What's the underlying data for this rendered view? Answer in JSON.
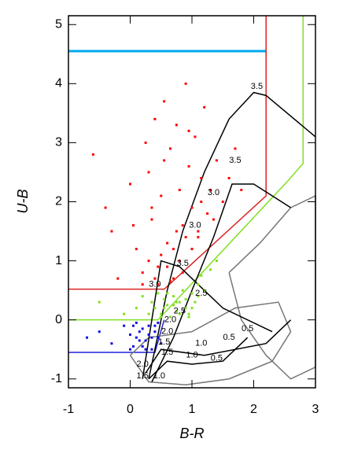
{
  "chart_data": {
    "type": "scatter",
    "xlabel": "B-R",
    "ylabel": "U-B",
    "xlim": [
      -1,
      3
    ],
    "ylim": [
      -1.15,
      5.15
    ],
    "xticks": [
      -1,
      0,
      1,
      2,
      3
    ],
    "yticks": [
      -1,
      0,
      1,
      2,
      3,
      4,
      5
    ],
    "series": [
      {
        "color": "#ff0000",
        "x": [
          -0.6,
          -0.4,
          -0.3,
          0.0,
          0.1,
          0.2,
          0.25,
          0.3,
          0.35,
          0.4,
          0.45,
          0.5,
          0.55,
          0.6,
          0.65,
          0.7,
          0.75,
          0.8,
          0.85,
          0.9,
          0.95,
          1.0,
          1.05,
          1.1,
          1.15,
          1.2,
          1.25,
          1.3,
          1.4,
          1.5,
          1.6,
          0.2,
          0.3,
          0.4,
          0.5,
          0.6,
          0.7,
          0.8,
          0.9,
          1.0,
          1.1,
          0.35,
          0.55,
          0.75,
          0.95,
          1.15,
          1.35,
          0.45,
          0.65,
          0.85,
          -0.2,
          0.05,
          1.7,
          1.8
        ],
        "values": [
          2.8,
          1.9,
          1.5,
          2.3,
          1.2,
          0.8,
          3.0,
          2.5,
          1.7,
          3.4,
          0.9,
          2.1,
          3.7,
          1.3,
          2.9,
          0.7,
          3.3,
          2.2,
          1.6,
          4.0,
          2.6,
          1.9,
          3.1,
          1.4,
          2.4,
          3.6,
          1.8,
          2.2,
          2.7,
          2.0,
          2.4,
          0.6,
          1.0,
          0.7,
          1.1,
          0.9,
          1.2,
          1.0,
          1.4,
          1.2,
          1.5,
          1.9,
          2.7,
          1.5,
          3.2,
          2.0,
          1.7,
          0.6,
          0.65,
          0.8,
          0.7,
          1.6,
          2.9,
          2.2
        ]
      },
      {
        "color": "#80e020",
        "x": [
          -0.5,
          -0.1,
          0.1,
          0.2,
          0.3,
          0.35,
          0.4,
          0.45,
          0.5,
          0.55,
          0.6,
          0.65,
          0.7,
          0.75,
          0.8,
          0.85,
          0.9,
          0.95,
          1.0,
          1.05,
          1.1,
          1.15,
          1.2,
          1.3,
          1.4,
          0.5,
          0.6,
          0.7,
          0.8,
          0.9,
          1.0,
          1.1,
          0.55,
          0.75,
          0.95
        ],
        "values": [
          0.3,
          0.1,
          0.2,
          0.4,
          0.1,
          0.3,
          0.2,
          0.45,
          0.1,
          0.35,
          0.25,
          0.05,
          0.4,
          0.15,
          0.3,
          0.5,
          0.2,
          0.1,
          0.45,
          0.3,
          0.6,
          0.75,
          0.5,
          0.85,
          1.0,
          0.05,
          0.45,
          0.25,
          0.1,
          0.35,
          0.2,
          0.4,
          0.2,
          0.3,
          0.05
        ]
      },
      {
        "color": "#1010e0",
        "x": [
          -0.7,
          -0.5,
          -0.3,
          -0.1,
          0.0,
          0.05,
          0.1,
          0.15,
          0.2,
          0.25,
          0.3,
          0.35,
          0.4,
          0.45,
          0.5,
          0.0,
          0.1,
          0.2,
          0.3,
          0.4,
          0.15,
          0.25,
          0.35,
          0.45,
          0.05
        ],
        "values": [
          -0.3,
          -0.2,
          -0.4,
          -0.1,
          -0.25,
          -0.45,
          -0.05,
          -0.35,
          -0.15,
          -0.5,
          -0.1,
          -0.3,
          -0.2,
          -0.05,
          -0.4,
          -0.5,
          -0.3,
          -0.45,
          -0.25,
          -0.1,
          -0.2,
          -0.35,
          -0.5,
          -0.3,
          -0.1
        ]
      }
    ],
    "lines": [
      {
        "color": "#00aaee",
        "x": [
          -1,
          2.2
        ],
        "y": [
          4.55,
          4.55
        ]
      },
      {
        "color": "#dd2222",
        "x": [
          -1,
          0.55,
          2.2,
          2.2
        ],
        "y": [
          0.52,
          0.52,
          2.1,
          5.15
        ]
      },
      {
        "color": "#80e020",
        "x": [
          -1,
          0.45,
          2.55,
          2.8,
          2.8
        ],
        "y": [
          0,
          0,
          2.35,
          2.65,
          5.15
        ]
      },
      {
        "color": "#2020dd",
        "x": [
          -1,
          0.4,
          0.55
        ],
        "y": [
          -0.55,
          -0.55,
          0
        ]
      },
      {
        "color": "#777777",
        "x": [
          0.0,
          0.3,
          0.9,
          1.6,
          2.3,
          2.6,
          2.4,
          1.7,
          1.0,
          0.3,
          0.0
        ],
        "y": [
          -0.6,
          -1.05,
          -1.1,
          -1.0,
          -0.7,
          -0.2,
          0.3,
          0.2,
          -0.2,
          -0.3,
          -0.6
        ]
      },
      {
        "color": "#777777",
        "x": [
          1.6,
          2.1,
          2.6,
          3.0,
          3.0,
          2.6,
          2.2,
          1.8,
          1.6
        ],
        "y": [
          0.8,
          1.3,
          1.9,
          2.1,
          -0.8,
          -1.0,
          -0.6,
          0.0,
          0.8
        ]
      },
      {
        "color": "#000000",
        "x": [
          0.3,
          0.5,
          0.6,
          0.85,
          1.2,
          1.6,
          2.0,
          2.2,
          3.0
        ],
        "y": [
          -1.0,
          0.0,
          0.5,
          1.5,
          2.5,
          3.4,
          3.85,
          3.8,
          3.1
        ]
      },
      {
        "color": "#000000",
        "x": [
          0.35,
          0.7,
          1.0,
          1.35,
          1.65,
          2.0,
          2.6
        ],
        "y": [
          -1.05,
          -0.3,
          0.5,
          1.4,
          2.3,
          2.3,
          1.9
        ]
      },
      {
        "color": "#000000",
        "x": [
          0.2,
          0.5,
          0.8,
          1.0,
          1.5,
          2.3
        ],
        "y": [
          -1.0,
          1.0,
          0.9,
          0.7,
          0.2,
          -0.2
        ]
      },
      {
        "color": "#000000",
        "x": [
          0.25,
          0.5,
          1.2,
          2.2,
          2.6
        ],
        "y": [
          -0.9,
          -0.5,
          -0.6,
          -0.4,
          0.0
        ]
      },
      {
        "color": "#000000",
        "x": [
          0.3,
          0.6,
          1.0,
          1.5,
          1.9
        ],
        "y": [
          -1.0,
          -0.7,
          -0.75,
          -0.7,
          -0.3
        ]
      }
    ],
    "annotations": [
      {
        "text": "3.5",
        "x": 2.05,
        "y": 3.95
      },
      {
        "text": "3.5",
        "x": 1.7,
        "y": 2.7
      },
      {
        "text": "3.0",
        "x": 1.35,
        "y": 2.15
      },
      {
        "text": "3.0",
        "x": 1.05,
        "y": 1.6
      },
      {
        "text": "3.5",
        "x": 0.85,
        "y": 0.95
      },
      {
        "text": "3.0",
        "x": 0.4,
        "y": 0.6
      },
      {
        "text": "2.5",
        "x": 1.15,
        "y": 0.45
      },
      {
        "text": "2.5",
        "x": 0.8,
        "y": 0.15
      },
      {
        "text": "2.0",
        "x": 0.65,
        "y": 0.0
      },
      {
        "text": "2.0",
        "x": 0.6,
        "y": -0.2
      },
      {
        "text": "1.5",
        "x": 0.55,
        "y": -0.38
      },
      {
        "text": "1.0",
        "x": 1.15,
        "y": -0.4
      },
      {
        "text": "0.5",
        "x": 1.6,
        "y": -0.3
      },
      {
        "text": "0.5",
        "x": 1.9,
        "y": -0.15
      },
      {
        "text": "1.5",
        "x": 0.6,
        "y": -0.55
      },
      {
        "text": "1.0",
        "x": 1.0,
        "y": -0.6
      },
      {
        "text": "0.5",
        "x": 1.4,
        "y": -0.65
      },
      {
        "text": "2.0",
        "x": 0.2,
        "y": -0.75
      },
      {
        "text": "1.5",
        "x": 0.2,
        "y": -0.95
      },
      {
        "text": "1.0",
        "x": 0.47,
        "y": -0.95
      }
    ]
  }
}
